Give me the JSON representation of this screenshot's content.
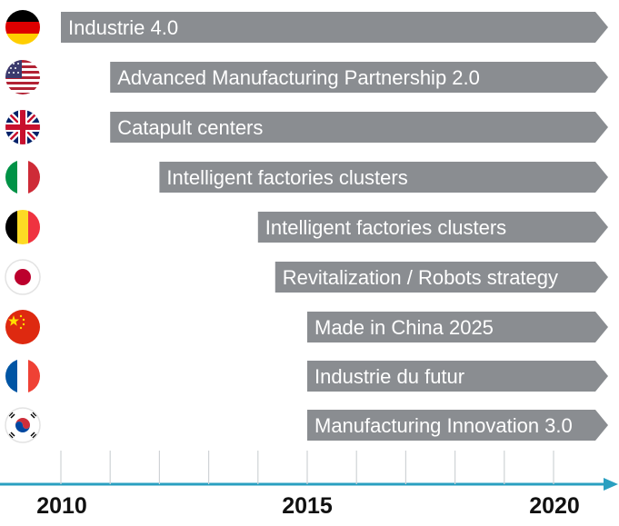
{
  "timeline": {
    "axis_color": "#2a9fc0",
    "bar_color": "#8a8d91",
    "year_labels": [
      "2010",
      "2015",
      "2020"
    ],
    "axis_start_year": 2009.4,
    "axis_end_year": 2020.5
  },
  "initiatives": [
    {
      "country_icon": "germany-flag-icon",
      "label": "Industrie 4.0",
      "start_year": 2010
    },
    {
      "country_icon": "usa-flag-icon",
      "label": "Advanced Manufacturing Partnership 2.0",
      "start_year": 2011
    },
    {
      "country_icon": "uk-flag-icon",
      "label": "Catapult centers",
      "start_year": 2011
    },
    {
      "country_icon": "italy-flag-icon",
      "label": "Intelligent factories clusters",
      "start_year": 2012
    },
    {
      "country_icon": "belgium-flag-icon",
      "label": "Intelligent factories clusters",
      "start_year": 2014
    },
    {
      "country_icon": "japan-flag-icon",
      "label": "Revitalization / Robots strategy",
      "start_year": 2014.35
    },
    {
      "country_icon": "china-flag-icon",
      "label": "Made in China 2025",
      "start_year": 2015
    },
    {
      "country_icon": "france-flag-icon",
      "label": "Industrie du futur",
      "start_year": 2015
    },
    {
      "country_icon": "south-korea-flag-icon",
      "label": "Manufacturing Innovation 3.0",
      "start_year": 2015
    }
  ]
}
